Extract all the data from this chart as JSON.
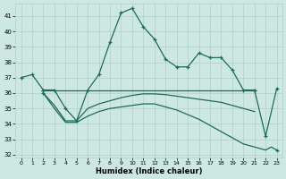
{
  "xlabel": "Humidex (Indice chaleur)",
  "xlim": [
    -0.5,
    23.5
  ],
  "ylim": [
    31.8,
    41.8
  ],
  "yticks": [
    32,
    33,
    34,
    35,
    36,
    37,
    38,
    39,
    40,
    41
  ],
  "xticks": [
    0,
    1,
    2,
    3,
    4,
    5,
    6,
    7,
    8,
    9,
    10,
    11,
    12,
    13,
    14,
    15,
    16,
    17,
    18,
    19,
    20,
    21,
    22,
    23
  ],
  "bg_color": "#cce8e0",
  "line_color": "#1d6b5c",
  "grid_color": "#b0d0cc",
  "line1_x": [
    0,
    1,
    2,
    3,
    4,
    5,
    6,
    7,
    8,
    9,
    10,
    11,
    12,
    13,
    14,
    15,
    16,
    17,
    18,
    19,
    20,
    21,
    22,
    23
  ],
  "line1_y": [
    37.0,
    37.2,
    36.2,
    36.2,
    35.0,
    34.2,
    36.2,
    37.2,
    39.3,
    41.2,
    41.5,
    40.3,
    39.5,
    38.2,
    37.7,
    37.7,
    38.6,
    38.3,
    38.3,
    37.5,
    36.2,
    36.2,
    33.2,
    36.3
  ],
  "line2_x": [
    2,
    3,
    4,
    5,
    6,
    7,
    8,
    9,
    10,
    11,
    12,
    13,
    14,
    15,
    16,
    17,
    18,
    19,
    20,
    21
  ],
  "line2_y": [
    36.2,
    36.2,
    36.2,
    36.2,
    36.2,
    36.2,
    36.2,
    36.2,
    36.2,
    36.2,
    36.2,
    36.2,
    36.2,
    36.2,
    36.2,
    36.2,
    36.2,
    36.2,
    36.2,
    36.2
  ],
  "line3_x": [
    2,
    3,
    4,
    5,
    6,
    7,
    8,
    9,
    10,
    11,
    12,
    13,
    14,
    15,
    16,
    17,
    18,
    19,
    20,
    21
  ],
  "line3_y": [
    36.0,
    35.2,
    34.2,
    34.2,
    35.0,
    35.3,
    35.5,
    35.7,
    35.85,
    35.95,
    35.95,
    35.9,
    35.8,
    35.7,
    35.6,
    35.5,
    35.4,
    35.2,
    35.0,
    34.8
  ],
  "line4_x": [
    2,
    3,
    4,
    5,
    6,
    7,
    8,
    9,
    10,
    11,
    12,
    13,
    14,
    15,
    16,
    17,
    18,
    19,
    20,
    21,
    22,
    22.5,
    23
  ],
  "line4_y": [
    36.0,
    35.0,
    34.1,
    34.1,
    34.5,
    34.8,
    35.0,
    35.1,
    35.2,
    35.3,
    35.3,
    35.1,
    34.9,
    34.6,
    34.3,
    33.9,
    33.5,
    33.1,
    32.7,
    32.5,
    32.3,
    32.5,
    32.3
  ]
}
